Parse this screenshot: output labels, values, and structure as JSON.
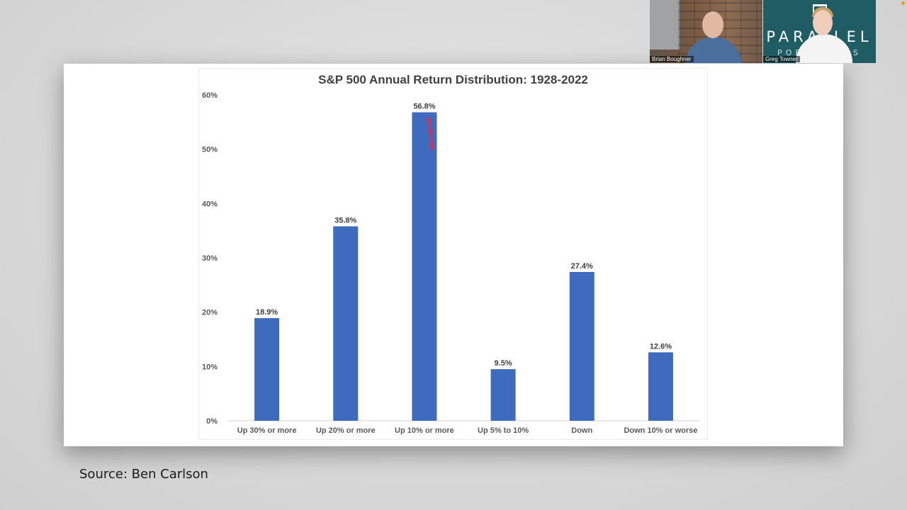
{
  "source_text": "Source: Ben Carlson",
  "participants": [
    {
      "name": "Brian Boughner"
    },
    {
      "name": "Greg Towner"
    }
  ],
  "brand": {
    "word": "PARALLEL",
    "sub": "PORTFOLIOS"
  },
  "chart_data": {
    "type": "bar",
    "title": "S&P 500 Annual Return Distribution: 1928-2022",
    "categories": [
      "Up 30% or more",
      "Up 20% or more",
      "Up 10% or more",
      "Up 5% to 10%",
      "Down",
      "Down 10% or worse"
    ],
    "values": [
      18.9,
      35.8,
      56.8,
      9.5,
      27.4,
      12.6
    ],
    "value_labels": [
      "18.9%",
      "35.8%",
      "56.8%",
      "9.5%",
      "27.4%",
      "12.6%"
    ],
    "ylim": [
      0,
      60
    ],
    "yticks": [
      0,
      10,
      20,
      30,
      40,
      50,
      60
    ],
    "ytick_labels": [
      "0%",
      "10%",
      "20%",
      "30%",
      "40%",
      "50%",
      "60%"
    ],
    "xlabel": "",
    "ylabel": "",
    "grid": false,
    "bar_color": "#3e6bbd",
    "annotation_color": "#e8274b"
  }
}
